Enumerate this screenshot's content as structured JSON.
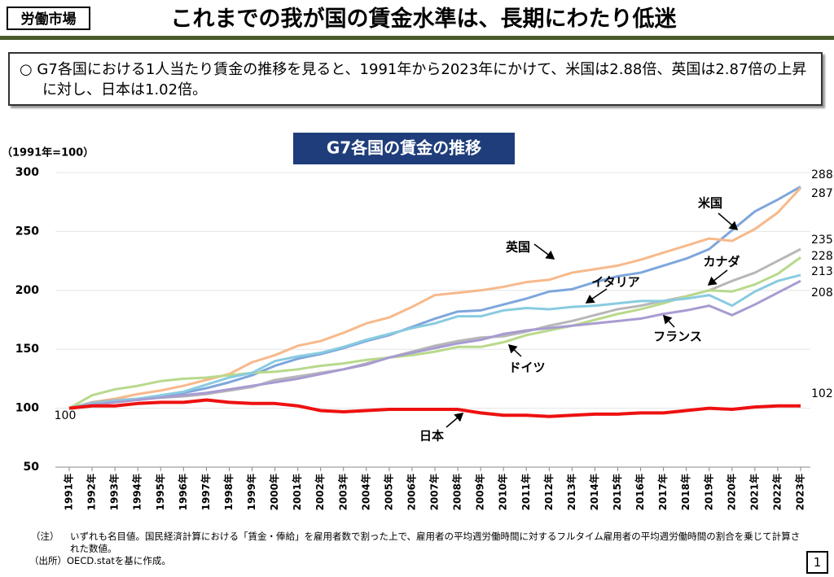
{
  "header": {
    "tag": "労働市場",
    "title": "これまでの我が国の賃金水準は、長期にわたり低迷"
  },
  "summary": "○ G7各国における1人当たり賃金の推移を見ると、1991年から2023年にかけて、米国は2.88倍、英国は2.87倍の上昇に対し、日本は1.02倍。",
  "chart_data": {
    "type": "line",
    "title": "G7各国の賃金の推移",
    "y_label": "（1991年=100）",
    "categories": [
      "1991年",
      "1992年",
      "1993年",
      "1994年",
      "1995年",
      "1996年",
      "1997年",
      "1998年",
      "1999年",
      "2000年",
      "2001年",
      "2002年",
      "2003年",
      "2004年",
      "2005年",
      "2006年",
      "2007年",
      "2008年",
      "2009年",
      "2010年",
      "2011年",
      "2012年",
      "2013年",
      "2014年",
      "2015年",
      "2016年",
      "2017年",
      "2018年",
      "2019年",
      "2020年",
      "2021年",
      "2022年",
      "2023年"
    ],
    "ylim": [
      50,
      300
    ],
    "yticks": [
      50,
      100,
      150,
      200,
      250,
      300
    ],
    "grid": true,
    "series": [
      {
        "name": "米国",
        "color": "#7ea6dc",
        "values": [
          100,
          104,
          106,
          108,
          110,
          113,
          117,
          122,
          128,
          136,
          142,
          146,
          151,
          157,
          162,
          169,
          176,
          182,
          183,
          188,
          193,
          199,
          201,
          207,
          212,
          215,
          221,
          227,
          235,
          251,
          267,
          277,
          288
        ]
      },
      {
        "name": "英国",
        "color": "#f7b98b",
        "values": [
          100,
          105,
          108,
          112,
          115,
          119,
          124,
          129,
          139,
          145,
          153,
          157,
          164,
          172,
          177,
          186,
          196,
          198,
          200,
          203,
          207,
          209,
          215,
          218,
          221,
          226,
          232,
          238,
          244,
          242,
          252,
          266,
          287
        ]
      },
      {
        "name": "カナダ",
        "color": "#b7b7b7",
        "values": [
          100,
          105,
          107,
          108,
          109,
          110,
          112,
          115,
          118,
          124,
          127,
          130,
          133,
          138,
          143,
          148,
          153,
          157,
          160,
          161,
          165,
          170,
          174,
          179,
          184,
          187,
          191,
          195,
          200,
          208,
          215,
          225,
          235
        ]
      },
      {
        "name": "ドイツ",
        "color": "#b8d98b",
        "values": [
          100,
          111,
          116,
          119,
          123,
          125,
          126,
          128,
          130,
          131,
          133,
          136,
          138,
          141,
          143,
          145,
          148,
          152,
          152,
          156,
          162,
          166,
          170,
          175,
          180,
          184,
          189,
          195,
          200,
          199,
          205,
          214,
          228
        ]
      },
      {
        "name": "イタリア",
        "color": "#89cbe0",
        "values": [
          100,
          104,
          106,
          108,
          111,
          114,
          120,
          126,
          130,
          140,
          144,
          147,
          152,
          158,
          163,
          168,
          172,
          178,
          178,
          183,
          185,
          184,
          186,
          187,
          189,
          191,
          191,
          193,
          196,
          187,
          199,
          208,
          213
        ]
      },
      {
        "name": "フランス",
        "color": "#a89bd1",
        "values": [
          100,
          103,
          105,
          107,
          109,
          111,
          113,
          116,
          119,
          122,
          125,
          129,
          133,
          137,
          143,
          147,
          151,
          155,
          158,
          163,
          166,
          168,
          170,
          172,
          174,
          176,
          180,
          183,
          187,
          179,
          188,
          198,
          208
        ]
      },
      {
        "name": "日本",
        "color": "#ee1111",
        "values": [
          100,
          102,
          102,
          104,
          105,
          105,
          107,
          105,
          104,
          104,
          102,
          98,
          97,
          98,
          99,
          99,
          99,
          99,
          96,
          94,
          94,
          93,
          94,
          95,
          95,
          96,
          96,
          98,
          100,
          99,
          101,
          102,
          102
        ]
      }
    ]
  },
  "notes": {
    "note_label": "（注）",
    "note": "いずれも名目値。国民経済計算における「賃金・俸給」を雇用者数で割った上で、雇用者の平均週労働時間に対するフルタイム雇用者の平均週労働時間の割合を乗じて計算された数値。",
    "source": "（出所）OECD.statを基に作成。"
  },
  "page_number": "1"
}
